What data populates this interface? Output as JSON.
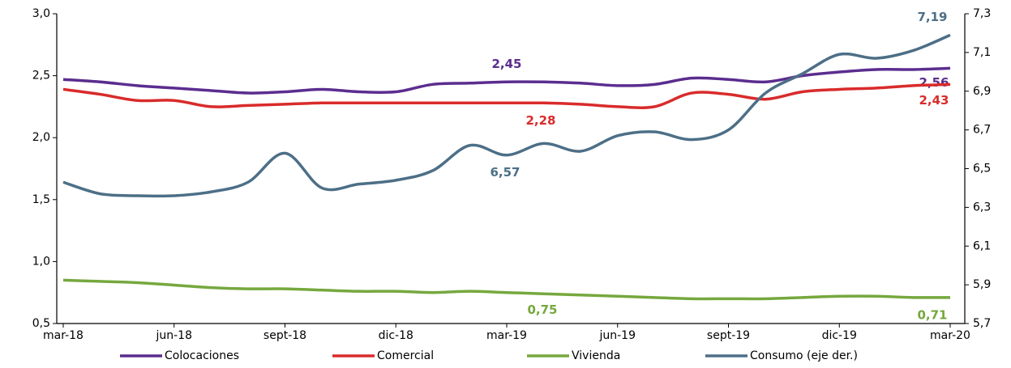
{
  "chart_data": {
    "type": "line",
    "categories": [
      "mar-18",
      null,
      null,
      "jun-18",
      null,
      null,
      "sept-18",
      null,
      null,
      "dic-18",
      null,
      null,
      "mar-19",
      null,
      null,
      "jun-19",
      null,
      null,
      "sept-19",
      null,
      null,
      "dic-19",
      null,
      null,
      "mar-20"
    ],
    "series": [
      {
        "name": "Colocaciones",
        "color": "#5b2d8f",
        "values": [
          2.47,
          2.45,
          2.42,
          2.4,
          2.38,
          2.36,
          2.37,
          2.39,
          2.37,
          2.37,
          2.43,
          2.44,
          2.45,
          2.45,
          2.44,
          2.42,
          2.43,
          2.48,
          2.47,
          2.45,
          2.5,
          2.53,
          2.55,
          2.55,
          2.56
        ],
        "value_labels": [
          null,
          null,
          null,
          null,
          null,
          null,
          null,
          null,
          null,
          null,
          null,
          null,
          "2,45",
          null,
          null,
          null,
          null,
          null,
          null,
          null,
          null,
          null,
          null,
          null,
          "2,56"
        ]
      },
      {
        "name": "Comercial",
        "color": "#d92b2b",
        "values": [
          2.39,
          2.35,
          2.3,
          2.3,
          2.25,
          2.26,
          2.27,
          2.28,
          2.28,
          2.28,
          2.28,
          2.28,
          2.28,
          2.28,
          2.27,
          2.25,
          2.25,
          2.36,
          2.35,
          2.31,
          2.37,
          2.39,
          2.4,
          2.42,
          2.43
        ],
        "value_labels": [
          null,
          null,
          null,
          null,
          null,
          null,
          null,
          null,
          null,
          null,
          null,
          null,
          "2,28",
          null,
          null,
          null,
          null,
          null,
          null,
          null,
          null,
          null,
          null,
          null,
          "2,43"
        ]
      },
      {
        "name": "Vivienda",
        "color": "#76a83e",
        "values": [
          0.85,
          0.84,
          0.83,
          0.81,
          0.79,
          0.78,
          0.78,
          0.77,
          0.76,
          0.76,
          0.75,
          0.76,
          0.75,
          0.74,
          0.73,
          0.72,
          0.71,
          0.7,
          0.7,
          0.7,
          0.71,
          0.72,
          0.72,
          0.71,
          0.71
        ],
        "value_labels": [
          null,
          null,
          null,
          null,
          null,
          null,
          null,
          null,
          null,
          null,
          null,
          null,
          "0,75",
          null,
          null,
          null,
          null,
          null,
          null,
          null,
          null,
          null,
          null,
          null,
          "0,71"
        ]
      },
      {
        "name": "Consumo (eje der.)",
        "color": "#4d6f87",
        "axis": "y2",
        "values": [
          6.43,
          6.37,
          6.36,
          6.36,
          6.38,
          6.43,
          6.58,
          6.4,
          6.42,
          6.44,
          6.49,
          6.62,
          6.57,
          6.63,
          6.59,
          6.67,
          6.69,
          6.65,
          6.7,
          6.89,
          6.99,
          7.09,
          7.07,
          7.11,
          7.19
        ],
        "value_labels": [
          null,
          null,
          null,
          null,
          null,
          null,
          null,
          null,
          null,
          null,
          null,
          null,
          "6,57",
          null,
          null,
          null,
          null,
          null,
          null,
          null,
          null,
          null,
          null,
          null,
          "7,19"
        ]
      }
    ],
    "ylim": [
      0.5,
      3.0
    ],
    "yticks": [
      {
        "value": 0.5,
        "label": "0,5"
      },
      {
        "value": 1.0,
        "label": "1,0"
      },
      {
        "value": 1.5,
        "label": "1,5"
      },
      {
        "value": 2.0,
        "label": "2,0"
      },
      {
        "value": 2.5,
        "label": "2,5"
      },
      {
        "value": 3.0,
        "label": "3,0"
      }
    ],
    "y2lim": [
      5.7,
      7.3
    ],
    "y2ticks": [
      {
        "value": 5.7,
        "label": "5,7"
      },
      {
        "value": 5.9,
        "label": "5,9"
      },
      {
        "value": 6.1,
        "label": "6,1"
      },
      {
        "value": 6.3,
        "label": "6,3"
      },
      {
        "value": 6.5,
        "label": "6,5"
      },
      {
        "value": 6.7,
        "label": "6,7"
      },
      {
        "value": 6.9,
        "label": "6,9"
      },
      {
        "value": 7.1,
        "label": "7,1"
      },
      {
        "value": 7.3,
        "label": "7,3"
      }
    ],
    "grid": false,
    "legend": "bottom"
  }
}
